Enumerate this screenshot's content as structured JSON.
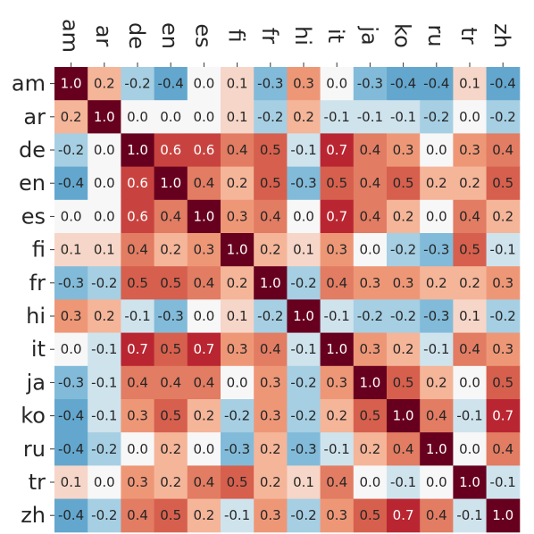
{
  "chart_data": {
    "type": "heatmap",
    "labels": [
      "am",
      "ar",
      "de",
      "en",
      "es",
      "fi",
      "fr",
      "hi",
      "it",
      "ja",
      "ko",
      "ru",
      "tr",
      "zh"
    ],
    "matrix": [
      [
        1.0,
        0.2,
        -0.2,
        -0.4,
        0.0,
        0.1,
        -0.3,
        0.3,
        0.0,
        -0.3,
        -0.4,
        -0.4,
        0.1,
        -0.4
      ],
      [
        0.2,
        1.0,
        0.0,
        0.0,
        0.0,
        0.1,
        -0.2,
        0.2,
        -0.1,
        -0.1,
        -0.1,
        -0.2,
        0.0,
        -0.2
      ],
      [
        -0.2,
        0.0,
        1.0,
        0.6,
        0.6,
        0.4,
        0.5,
        -0.1,
        0.7,
        0.4,
        0.3,
        0.0,
        0.3,
        0.4
      ],
      [
        -0.4,
        0.0,
        0.6,
        1.0,
        0.4,
        0.2,
        0.5,
        -0.3,
        0.5,
        0.4,
        0.5,
        0.2,
        0.2,
        0.5
      ],
      [
        0.0,
        0.0,
        0.6,
        0.4,
        1.0,
        0.3,
        0.4,
        0.0,
        0.7,
        0.4,
        0.2,
        0.0,
        0.4,
        0.2
      ],
      [
        0.1,
        0.1,
        0.4,
        0.2,
        0.3,
        1.0,
        0.2,
        0.1,
        0.3,
        0.0,
        -0.2,
        -0.3,
        0.5,
        -0.1
      ],
      [
        -0.3,
        -0.2,
        0.5,
        0.5,
        0.4,
        0.2,
        1.0,
        -0.2,
        0.4,
        0.3,
        0.3,
        0.2,
        0.2,
        0.3
      ],
      [
        0.3,
        0.2,
        -0.1,
        -0.3,
        0.0,
        0.1,
        -0.2,
        1.0,
        -0.1,
        -0.2,
        -0.2,
        -0.3,
        0.1,
        -0.2
      ],
      [
        0.0,
        -0.1,
        0.7,
        0.5,
        0.7,
        0.3,
        0.4,
        -0.1,
        1.0,
        0.3,
        0.2,
        -0.1,
        0.4,
        0.3
      ],
      [
        -0.3,
        -0.1,
        0.4,
        0.4,
        0.4,
        0.0,
        0.3,
        -0.2,
        0.3,
        1.0,
        0.5,
        0.2,
        0.0,
        0.5
      ],
      [
        -0.4,
        -0.1,
        0.3,
        0.5,
        0.2,
        -0.2,
        0.3,
        -0.2,
        0.2,
        0.5,
        1.0,
        0.4,
        -0.1,
        0.7
      ],
      [
        -0.4,
        -0.2,
        0.0,
        0.2,
        0.0,
        -0.3,
        0.2,
        -0.3,
        -0.1,
        0.2,
        0.4,
        1.0,
        0.0,
        0.4
      ],
      [
        0.1,
        0.0,
        0.3,
        0.2,
        0.4,
        0.5,
        0.2,
        0.1,
        0.4,
        0.0,
        -0.1,
        0.0,
        1.0,
        -0.1
      ],
      [
        -0.4,
        -0.2,
        0.4,
        0.5,
        0.2,
        -0.1,
        0.3,
        -0.2,
        0.3,
        0.5,
        0.7,
        0.4,
        -0.1,
        1.0
      ]
    ],
    "value_format": "one decimal",
    "colormap": "RdBu_r",
    "vmin": -1.0,
    "vmax": 1.0,
    "x_tick_position": "top",
    "x_tick_rotation": "vertical",
    "y_tick_position": "left",
    "grid": false,
    "legend": "none"
  }
}
